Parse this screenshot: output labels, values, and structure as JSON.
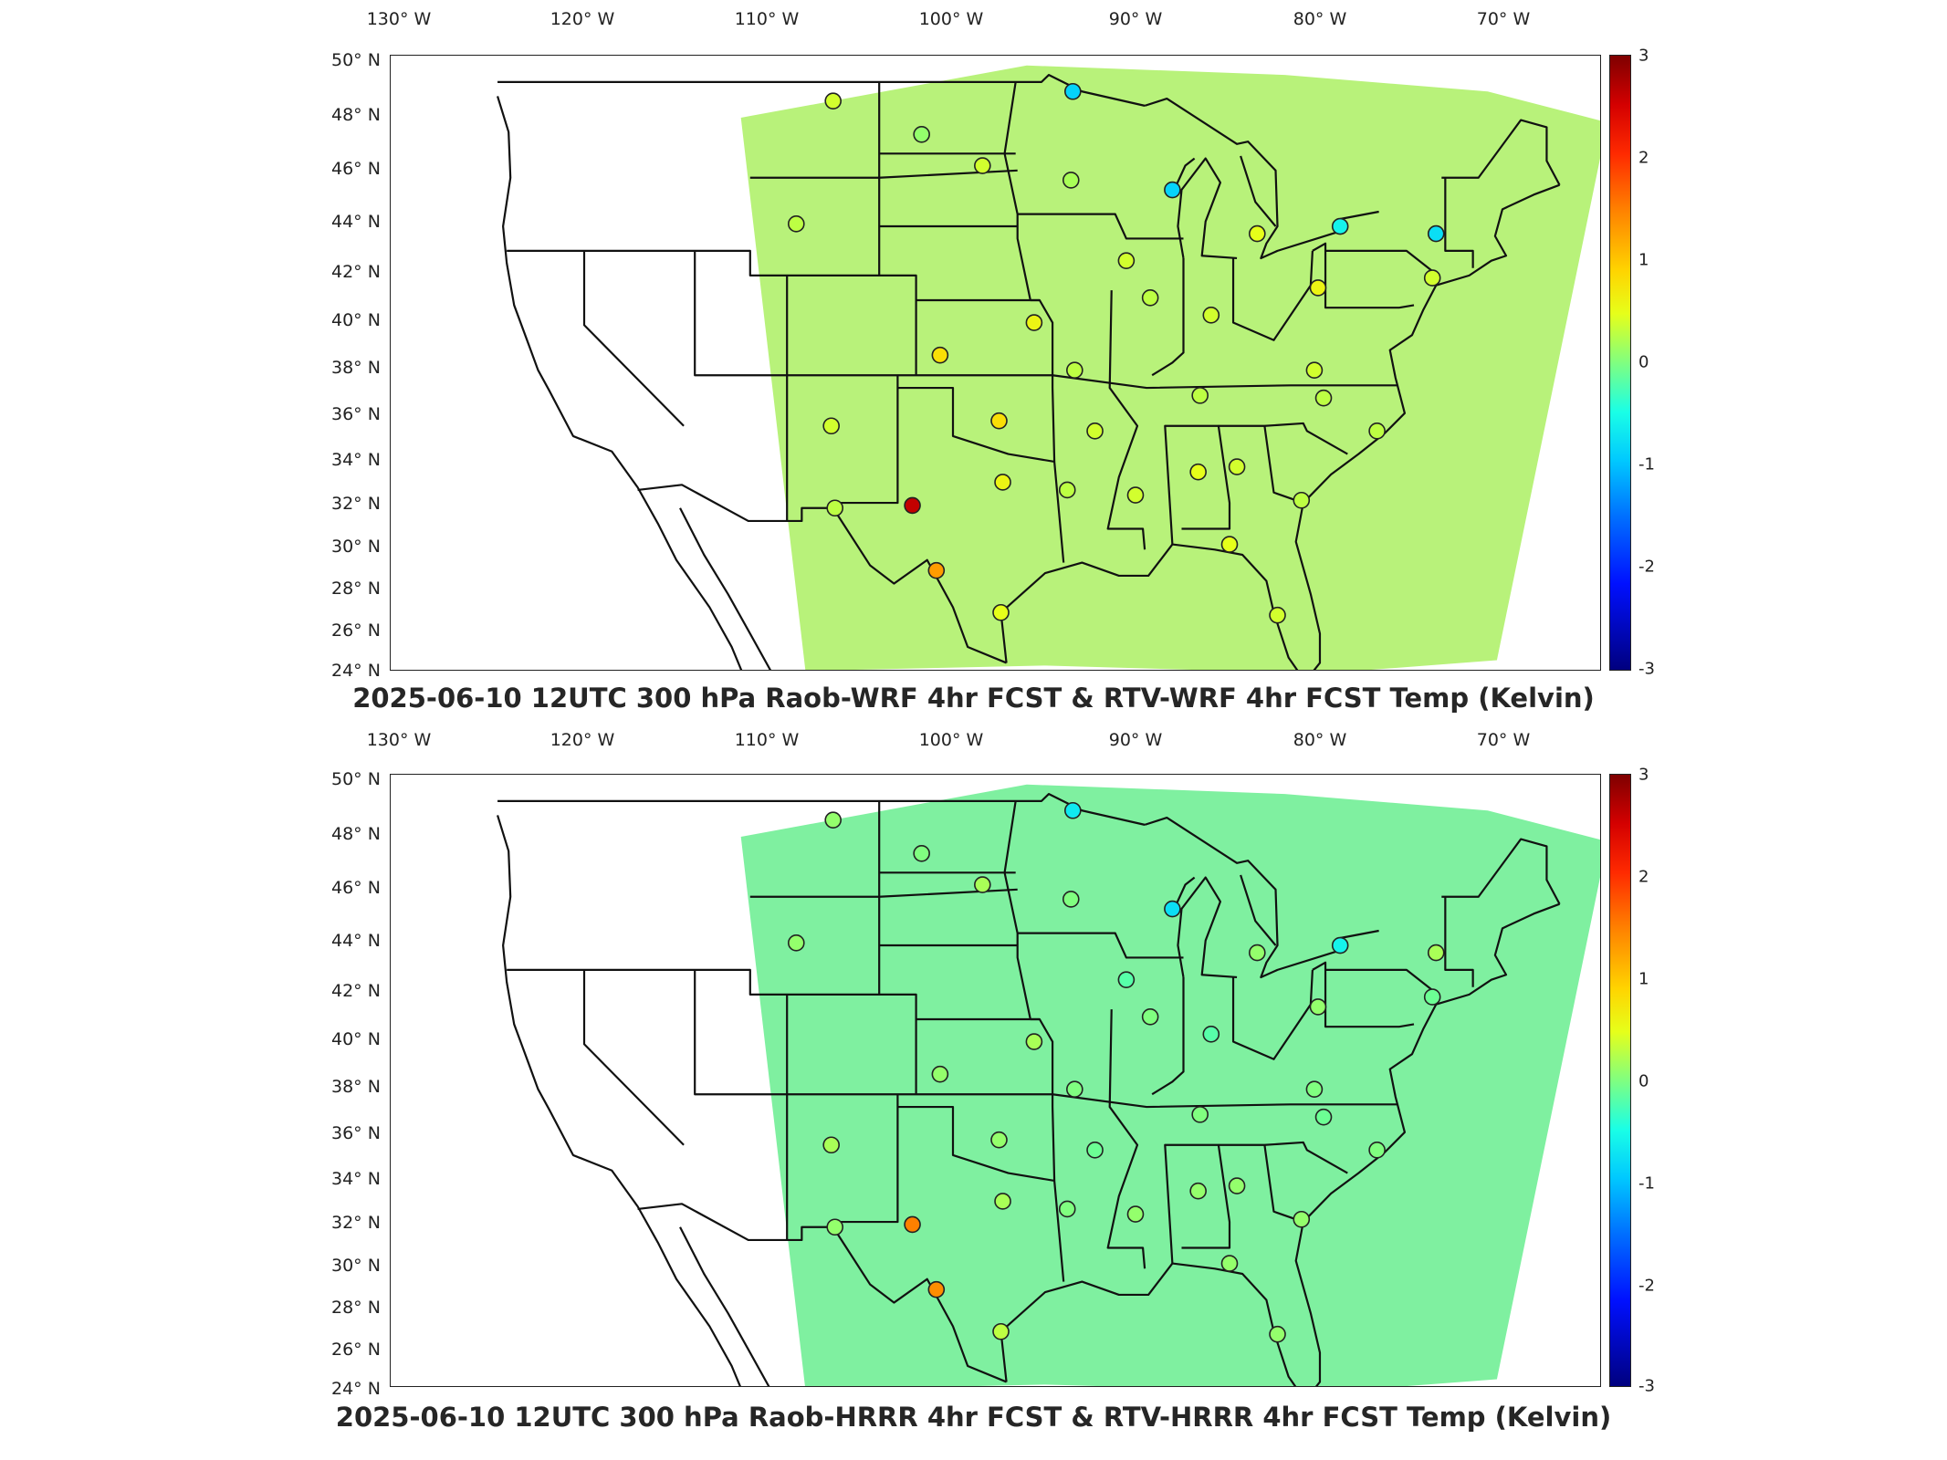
{
  "lon_ticks": [
    "130° W",
    "120° W",
    "110° W",
    "100° W",
    "90° W",
    "80° W",
    "70° W"
  ],
  "lat_ticks": [
    "50° N",
    "48° N",
    "46° N",
    "44° N",
    "42° N",
    "40° N",
    "38° N",
    "36° N",
    "34° N",
    "32° N",
    "30° N",
    "28° N",
    "26° N",
    "24° N"
  ],
  "colorbar_ticks": [
    "3",
    "2",
    "1",
    "0",
    "-1",
    "-2",
    "-3"
  ],
  "colorbar_range": [
    -3,
    3
  ],
  "panels": [
    {
      "title": "2025-06-10 12UTC 300 hPa Raob-WRF 4hr FCST & RTV-WRF 4hr FCST Temp (Kelvin)",
      "stations": [
        {
          "lon": -106.5,
          "lat": 48.2,
          "value": 0.4
        },
        {
          "lon": -93.5,
          "lat": 48.6,
          "value": -0.9
        },
        {
          "lon": -101.7,
          "lat": 46.8,
          "value": 0.1
        },
        {
          "lon": -98.4,
          "lat": 45.5,
          "value": 0.4
        },
        {
          "lon": -93.6,
          "lat": 44.9,
          "value": 0.2
        },
        {
          "lon": -88.1,
          "lat": 44.5,
          "value": -0.9
        },
        {
          "lon": -108.5,
          "lat": 43.1,
          "value": 0.3
        },
        {
          "lon": -83.5,
          "lat": 42.7,
          "value": 0.5
        },
        {
          "lon": -79.0,
          "lat": 43.0,
          "value": -0.6
        },
        {
          "lon": -73.8,
          "lat": 42.7,
          "value": -0.8
        },
        {
          "lon": -90.6,
          "lat": 41.6,
          "value": 0.4
        },
        {
          "lon": -80.2,
          "lat": 40.5,
          "value": 0.6
        },
        {
          "lon": -74.0,
          "lat": 40.9,
          "value": 0.4
        },
        {
          "lon": -89.3,
          "lat": 40.1,
          "value": 0.3
        },
        {
          "lon": -86.0,
          "lat": 39.4,
          "value": 0.4
        },
        {
          "lon": -95.6,
          "lat": 39.1,
          "value": 0.6
        },
        {
          "lon": -100.7,
          "lat": 37.8,
          "value": 0.8
        },
        {
          "lon": -93.4,
          "lat": 37.2,
          "value": 0.3
        },
        {
          "lon": -80.4,
          "lat": 37.2,
          "value": 0.4
        },
        {
          "lon": -86.6,
          "lat": 36.2,
          "value": 0.3
        },
        {
          "lon": -79.9,
          "lat": 36.1,
          "value": 0.3
        },
        {
          "lon": -106.6,
          "lat": 35.0,
          "value": 0.4
        },
        {
          "lon": -97.5,
          "lat": 35.2,
          "value": 0.8
        },
        {
          "lon": -92.3,
          "lat": 34.8,
          "value": 0.4
        },
        {
          "lon": -77.0,
          "lat": 34.8,
          "value": 0.3
        },
        {
          "lon": -97.3,
          "lat": 32.8,
          "value": 0.6
        },
        {
          "lon": -86.7,
          "lat": 33.2,
          "value": 0.5
        },
        {
          "lon": -84.6,
          "lat": 33.4,
          "value": 0.4
        },
        {
          "lon": -93.8,
          "lat": 32.5,
          "value": 0.3
        },
        {
          "lon": -90.1,
          "lat": 32.3,
          "value": 0.4
        },
        {
          "lon": -81.1,
          "lat": 32.1,
          "value": 0.3
        },
        {
          "lon": -106.4,
          "lat": 31.8,
          "value": 0.3
        },
        {
          "lon": -102.2,
          "lat": 31.9,
          "value": 2.6
        },
        {
          "lon": -100.9,
          "lat": 29.4,
          "value": 1.3
        },
        {
          "lon": -97.4,
          "lat": 27.8,
          "value": 0.5
        },
        {
          "lon": -85.0,
          "lat": 30.4,
          "value": 0.5
        },
        {
          "lon": -82.4,
          "lat": 27.7,
          "value": 0.4
        }
      ]
    },
    {
      "title": "2025-06-10 12UTC 300 hPa Raob-HRRR 4hr FCST & RTV-HRRR 4hr FCST Temp (Kelvin)",
      "stations": [
        {
          "lon": -106.5,
          "lat": 48.2,
          "value": 0.1
        },
        {
          "lon": -93.5,
          "lat": 48.6,
          "value": -0.7
        },
        {
          "lon": -101.7,
          "lat": 46.8,
          "value": 0.0
        },
        {
          "lon": -98.4,
          "lat": 45.5,
          "value": 0.2
        },
        {
          "lon": -93.6,
          "lat": 44.9,
          "value": 0.0
        },
        {
          "lon": -88.1,
          "lat": 44.5,
          "value": -0.8
        },
        {
          "lon": -108.5,
          "lat": 43.1,
          "value": 0.1
        },
        {
          "lon": -83.5,
          "lat": 42.7,
          "value": 0.1
        },
        {
          "lon": -79.0,
          "lat": 43.0,
          "value": -0.6
        },
        {
          "lon": -73.8,
          "lat": 42.7,
          "value": 0.2
        },
        {
          "lon": -90.6,
          "lat": 41.6,
          "value": -0.2
        },
        {
          "lon": -80.2,
          "lat": 40.5,
          "value": 0.1
        },
        {
          "lon": -74.0,
          "lat": 40.9,
          "value": -0.1
        },
        {
          "lon": -89.3,
          "lat": 40.1,
          "value": 0.0
        },
        {
          "lon": -86.0,
          "lat": 39.4,
          "value": -0.2
        },
        {
          "lon": -95.6,
          "lat": 39.1,
          "value": 0.2
        },
        {
          "lon": -100.7,
          "lat": 37.8,
          "value": 0.1
        },
        {
          "lon": -93.4,
          "lat": 37.2,
          "value": 0.0
        },
        {
          "lon": -80.4,
          "lat": 37.2,
          "value": 0.0
        },
        {
          "lon": -86.6,
          "lat": 36.2,
          "value": 0.0
        },
        {
          "lon": -79.9,
          "lat": 36.1,
          "value": -0.1
        },
        {
          "lon": -106.6,
          "lat": 35.0,
          "value": 0.2
        },
        {
          "lon": -97.5,
          "lat": 35.2,
          "value": 0.1
        },
        {
          "lon": -92.3,
          "lat": 34.8,
          "value": -0.1
        },
        {
          "lon": -77.0,
          "lat": 34.8,
          "value": 0.0
        },
        {
          "lon": -97.3,
          "lat": 32.8,
          "value": 0.2
        },
        {
          "lon": -86.7,
          "lat": 33.2,
          "value": 0.1
        },
        {
          "lon": -84.6,
          "lat": 33.4,
          "value": 0.1
        },
        {
          "lon": -93.8,
          "lat": 32.5,
          "value": 0.0
        },
        {
          "lon": -90.1,
          "lat": 32.3,
          "value": 0.1
        },
        {
          "lon": -81.1,
          "lat": 32.1,
          "value": 0.1
        },
        {
          "lon": -106.4,
          "lat": 31.8,
          "value": 0.1
        },
        {
          "lon": -102.2,
          "lat": 31.9,
          "value": 1.5
        },
        {
          "lon": -100.9,
          "lat": 29.4,
          "value": 1.4
        },
        {
          "lon": -97.4,
          "lat": 27.8,
          "value": 0.3
        },
        {
          "lon": -85.0,
          "lat": 30.4,
          "value": 0.1
        },
        {
          "lon": -82.4,
          "lat": 27.7,
          "value": 0.1
        }
      ]
    }
  ]
}
